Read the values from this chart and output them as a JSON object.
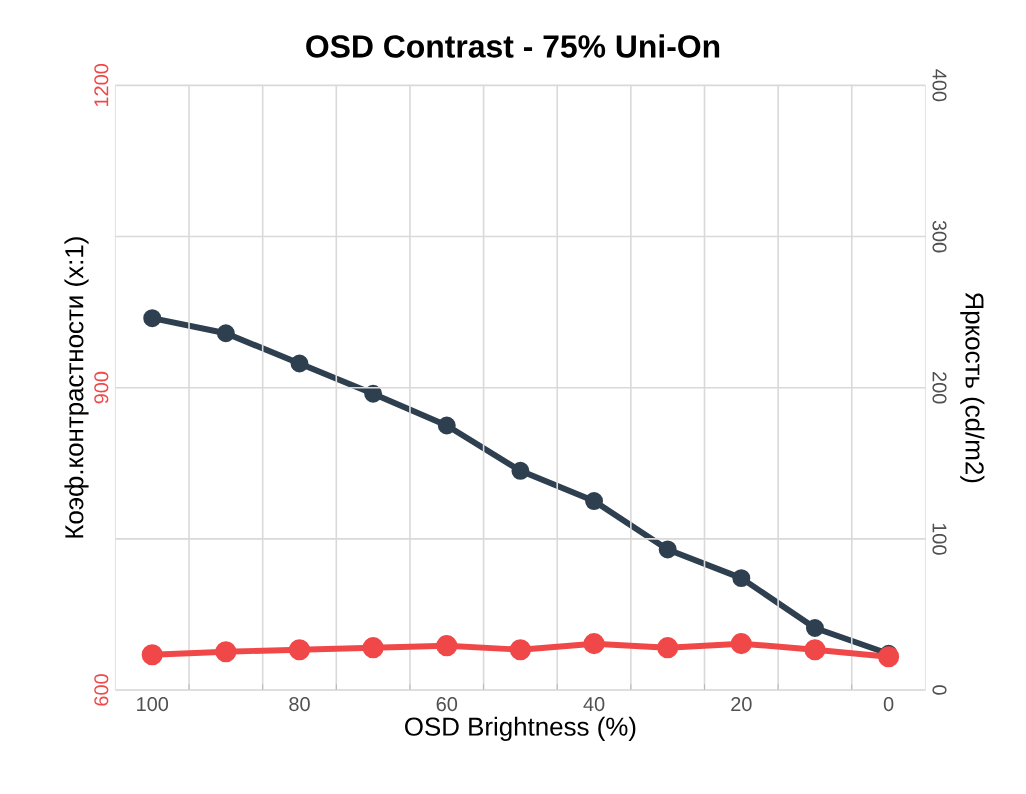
{
  "chart_data": {
    "type": "line",
    "title": "OSD Contrast - 75% Uni-On",
    "xlabel": "OSD Brightness (%)",
    "ylabel": "Коэф.контрастности (x:1)",
    "y2label": "Яркость (cd/m2)",
    "categories": [
      "100",
      null,
      "80",
      null,
      "60",
      null,
      "40",
      null,
      "20",
      null,
      "0"
    ],
    "series": [
      {
        "color": "#f04848",
        "values": [
          635,
          638,
          640,
          642,
          644,
          640,
          646,
          642,
          646,
          640,
          633
        ]
      },
      {
        "color": "#2e3f4f",
        "axis": "y2",
        "values": [
          246,
          236,
          216,
          196,
          175,
          145,
          125,
          93,
          74,
          41,
          24
        ]
      }
    ],
    "ylim": [
      600,
      1200
    ],
    "yticks": [
      600,
      {
        "value": 750,
        "label": null
      },
      900,
      {
        "value": 1050,
        "label": null
      },
      1200
    ],
    "y2lim": [
      0,
      400
    ],
    "y2ticks": [
      0,
      100,
      200,
      300,
      400
    ],
    "grid": true,
    "marker": "circle",
    "line_style": "solid"
  }
}
